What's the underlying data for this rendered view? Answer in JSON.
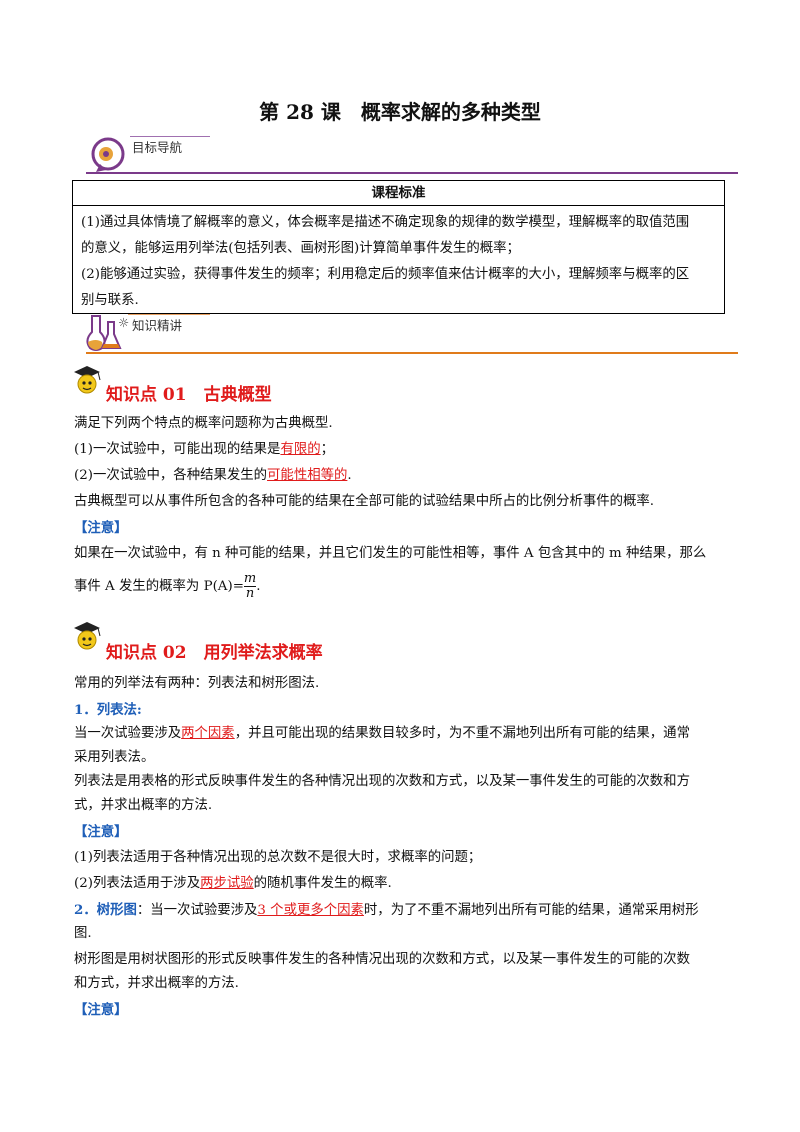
{
  "title": "第 28 课　概率求解的多种类型",
  "sections": {
    "goal_label": "目标导航",
    "knowledge_label": "知识精讲"
  },
  "standard": {
    "heading": "课程标准",
    "line1": "(1)通过具体情境了解概率的意义，体会概率是描述不确定现象的规律的数学模型，理解概率的取值范围",
    "line2": "的意义，能够运用列举法(包括列表、画树形图)计算简单事件发生的概率；",
    "line3": "(2)能够通过实验，获得事件发生的频率；利用稳定后的频率值来估计概率的大小，理解频率与概率的区",
    "line4": "别与联系."
  },
  "kp1": {
    "title": "知识点 01　古典概型",
    "intro": "满足下列两个特点的概率问题称为古典概型.",
    "p1_pre": "(1)一次试验中，可能出现的结果是",
    "p1_red": "有限的",
    "p1_post": "；",
    "p2_pre": "(2)一次试验中，各种结果发生的",
    "p2_red": "可能性相等的",
    "p2_post": ".",
    "desc": "古典概型可以从事件所包含的各种可能的结果在全部可能的试验结果中所占的比例分析事件的概率.",
    "note": "【注意】",
    "note_line1": "如果在一次试验中，有 n 种可能的结果，并且它们发生的可能性相等，事件 A 包含其中的 m 种结果，那么",
    "note_line2_pre": "事件 A 发生的概率为 P(A)=",
    "frac_num": "m",
    "frac_den": "n",
    "note_line2_post": "."
  },
  "kp2": {
    "title": "知识点 02　用列举法求概率",
    "intro": "常用的列举法有两种：列表法和树形图法.",
    "h1": "1．列表法:",
    "l1_pre": "当一次试验要涉及",
    "l1_red": "两个因素",
    "l1_post": "，并且可能出现的结果数目较多时，为不重不漏地列出所有可能的结果，通常",
    "l2": "采用列表法。",
    "l3": "列表法是用表格的形式反映事件发生的各种情况出现的次数和方式，以及某一事件发生的可能的次数和方",
    "l4": "式，并求出概率的方法.",
    "note1": "【注意】",
    "n1": "(1)列表法适用于各种情况出现的总次数不是很大时，求概率的问题；",
    "n2_pre": "(2)列表法适用于涉及",
    "n2_red": "两步试验",
    "n2_post": "的随机事件发生的概率.",
    "h2": "2．树形图",
    "h2_post_pre": "：当一次试验要涉及",
    "h2_red": "3 个或更多个因素",
    "h2_post": "时，为了不重不漏地列出所有可能的结果，通常采用树形",
    "t2": "图.",
    "t3": "树形图是用树状图形的形式反映事件发生的各种情况出现的次数和方式，以及某一事件发生的可能的次数",
    "t4": "和方式，并求出概率的方法.",
    "note2": "【注意】"
  },
  "colors": {
    "red": "#e01b1b",
    "blue": "#1f5fb8",
    "purple_rule": "#7b3a8a",
    "orange_rule": "#e07b1a"
  },
  "icons": [
    "brain-gear-icon",
    "flask-icon",
    "scholar-mascot-icon"
  ]
}
